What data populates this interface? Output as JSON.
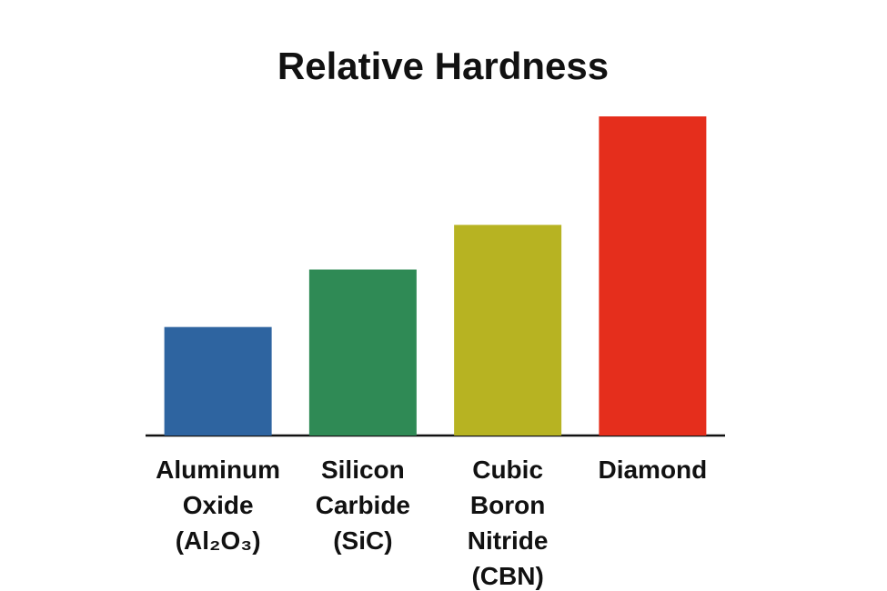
{
  "chart_data": {
    "type": "bar",
    "title": "Relative Hardness",
    "categories": [
      "Aluminum Oxide (Al₂O₃)",
      "Silicon Carbide (SiC)",
      "Cubic Boron Nitride (CBN)",
      "Diamond"
    ],
    "values": [
      34,
      52,
      66,
      100
    ],
    "colors": [
      "#2e64a0",
      "#2f8a55",
      "#b7b322",
      "#e52e1c"
    ],
    "ylim": [
      0,
      100
    ]
  }
}
